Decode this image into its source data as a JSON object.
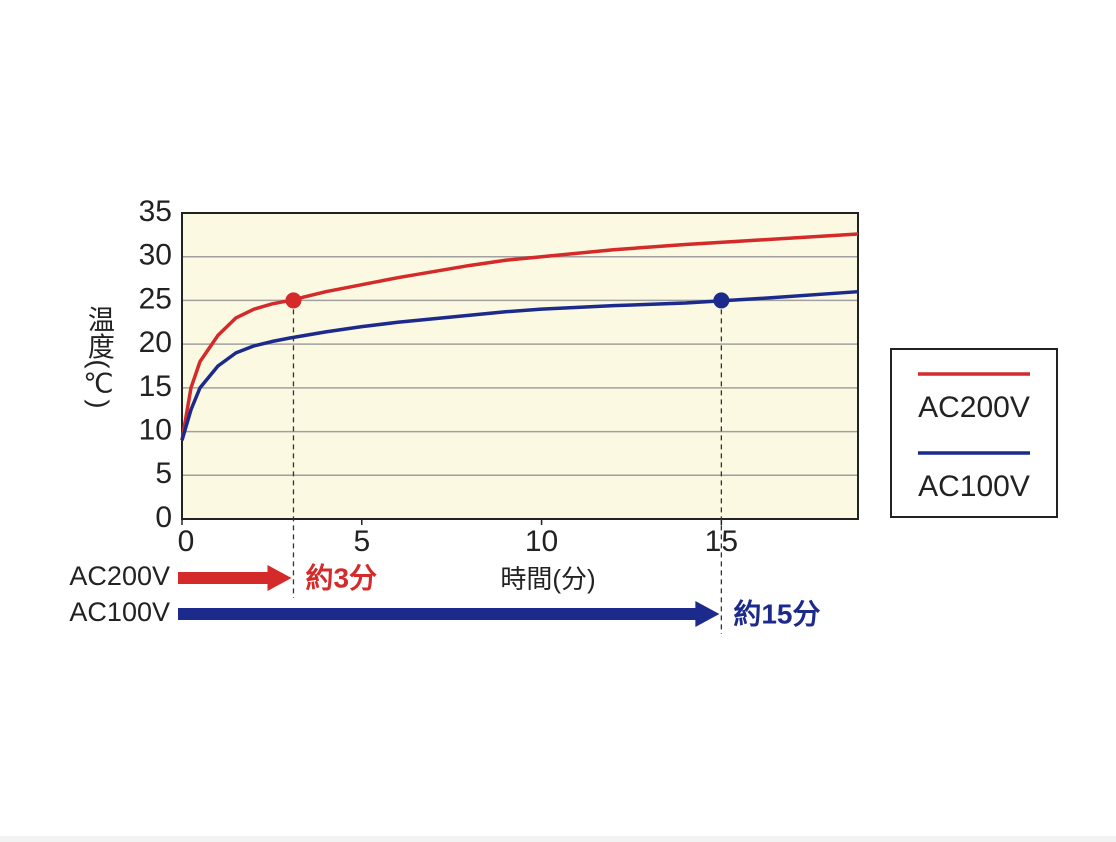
{
  "chart_data": {
    "type": "line",
    "y_label": "温度(℃)",
    "x_label": "時間(分)",
    "x": [
      0,
      0.25,
      0.5,
      1,
      1.5,
      2,
      2.5,
      3,
      4,
      5,
      6,
      7,
      8,
      9,
      10,
      12,
      14,
      16,
      18.8
    ],
    "series": [
      {
        "name": "AC200V",
        "color": "#d42a2a",
        "values": [
          9,
          15,
          18,
          21,
          23,
          24,
          24.6,
          25,
          26,
          26.8,
          27.6,
          28.3,
          29,
          29.6,
          30,
          30.8,
          31.4,
          31.9,
          32.6
        ]
      },
      {
        "name": "AC100V",
        "color": "#1c2a8c",
        "values": [
          9,
          12.5,
          15,
          17.5,
          19,
          19.8,
          20.3,
          20.7,
          21.4,
          22,
          22.5,
          22.9,
          23.3,
          23.7,
          24,
          24.4,
          24.7,
          25.2,
          26
        ]
      }
    ],
    "annotations": [
      {
        "text": "約3分",
        "x": 3.1,
        "y": 25,
        "series": 0
      },
      {
        "text": "約15分",
        "x": 15,
        "y": 25,
        "series": 1
      }
    ],
    "xlim": [
      0,
      18.8
    ],
    "ylim": [
      0,
      35
    ],
    "xticks": [
      0,
      5,
      10,
      15
    ],
    "yticks": [
      0,
      5,
      10,
      15,
      20,
      25,
      30,
      35
    ],
    "grid": true,
    "legend": "right",
    "background": "#fbf9e2"
  }
}
